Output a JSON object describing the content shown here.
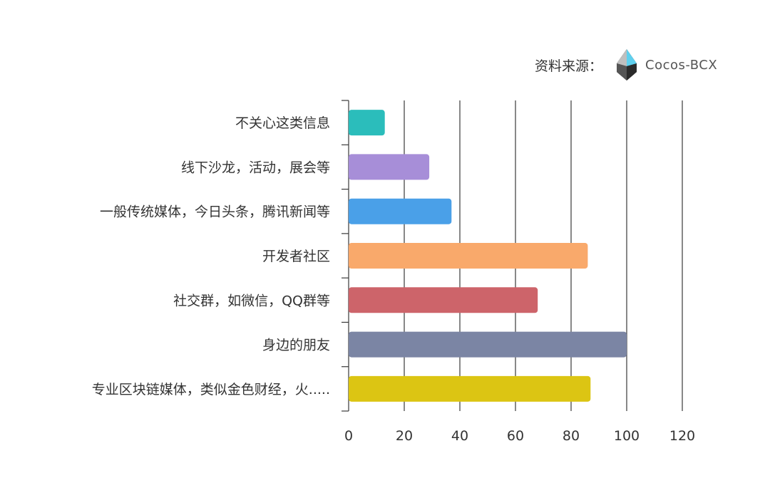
{
  "source": {
    "label": "资料来源：",
    "brand": "Cocos-BCX",
    "logo_icon": "cocos-bcx-crystal-icon"
  },
  "chart_data": {
    "type": "bar",
    "orientation": "horizontal",
    "categories": [
      "不关心这类信息",
      "线下沙龙，活动，展会等",
      "一般传统媒体，今日头条，腾讯新闻等",
      "开发者社区",
      "社交群，如微信，QQ群等",
      "身边的朋友",
      "专业区块链媒体，类似金色财经，火....."
    ],
    "values": [
      13,
      29,
      37,
      86,
      68,
      100,
      87
    ],
    "colors": [
      "#2bbdbb",
      "#a78ed8",
      "#4aa0e8",
      "#f9a96b",
      "#cd646a",
      "#7b85a4",
      "#dcc513"
    ],
    "title": "",
    "xlabel": "",
    "ylabel": "",
    "xlim": [
      0,
      120
    ],
    "xticks": [
      "0",
      "20",
      "40",
      "60",
      "80",
      "100",
      "120"
    ],
    "grid": true
  }
}
